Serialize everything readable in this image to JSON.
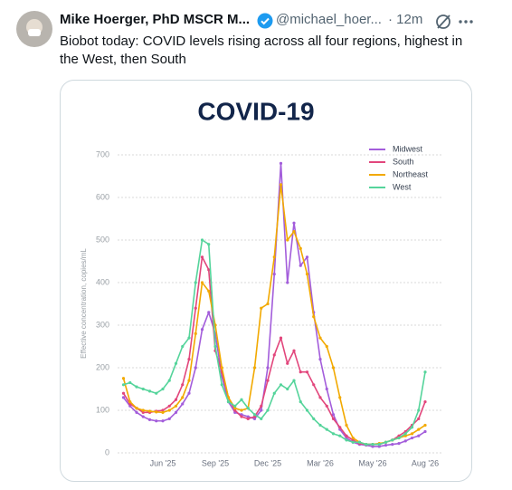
{
  "tweet": {
    "name": "Mike Hoerger, PhD MSCR M...",
    "handle": "@michael_hoer...",
    "time": "· 12m",
    "text": "Biobot today: COVID levels rising across all four regions, highest in the West, then South"
  },
  "chart_data": {
    "type": "line",
    "title": "COVID-19",
    "y_label": "Effective concentration, copies/mL",
    "categories": [
      null,
      null,
      null,
      null,
      null,
      null,
      "Jun '25",
      null,
      null,
      null,
      null,
      null,
      null,
      null,
      "Sep '25",
      null,
      null,
      null,
      null,
      null,
      null,
      null,
      "Dec '25",
      null,
      null,
      null,
      null,
      null,
      null,
      null,
      "Mar '26",
      null,
      null,
      null,
      null,
      null,
      null,
      null,
      "May '26",
      null,
      null,
      null,
      null,
      null,
      null,
      null,
      "Aug '26"
    ],
    "series": [
      {
        "name": "Midwest",
        "color": "#a35ddb",
        "values": [
          130,
          110,
          95,
          85,
          78,
          75,
          75,
          80,
          95,
          115,
          140,
          200,
          290,
          330,
          280,
          180,
          120,
          95,
          90,
          85,
          80,
          100,
          200,
          420,
          680,
          400,
          540,
          440,
          460,
          330,
          220,
          150,
          90,
          55,
          35,
          25,
          20,
          18,
          15,
          15,
          18,
          20,
          22,
          28,
          35,
          40,
          50
        ]
      },
      {
        "name": "South",
        "color": "#e2467c",
        "values": [
          140,
          115,
          105,
          95,
          95,
          98,
          100,
          110,
          125,
          160,
          220,
          340,
          460,
          430,
          240,
          190,
          130,
          100,
          85,
          80,
          85,
          110,
          170,
          230,
          270,
          210,
          240,
          190,
          190,
          160,
          130,
          110,
          80,
          60,
          40,
          30,
          22,
          20,
          20,
          20,
          25,
          30,
          40,
          50,
          65,
          80,
          120
        ]
      },
      {
        "name": "Northeast",
        "color": "#f2a900",
        "values": [
          175,
          120,
          105,
          100,
          98,
          96,
          95,
          100,
          110,
          130,
          170,
          280,
          400,
          380,
          300,
          200,
          130,
          105,
          100,
          105,
          200,
          340,
          350,
          460,
          630,
          500,
          520,
          480,
          420,
          320,
          270,
          250,
          200,
          130,
          65,
          35,
          25,
          20,
          20,
          22,
          25,
          30,
          35,
          40,
          45,
          55,
          65
        ]
      },
      {
        "name": "West",
        "color": "#55d49b",
        "values": [
          160,
          165,
          155,
          150,
          145,
          140,
          150,
          170,
          210,
          250,
          270,
          400,
          500,
          490,
          250,
          160,
          120,
          110,
          125,
          105,
          90,
          80,
          100,
          140,
          160,
          150,
          170,
          120,
          100,
          80,
          65,
          55,
          45,
          40,
          30,
          25,
          25,
          20,
          20,
          20,
          25,
          30,
          35,
          45,
          60,
          100,
          190
        ]
      }
    ],
    "ylim": [
      0,
      700
    ],
    "yticks": [
      0,
      100,
      200,
      300,
      400,
      500,
      600,
      700
    ],
    "grid": true,
    "legend": "upper right"
  }
}
